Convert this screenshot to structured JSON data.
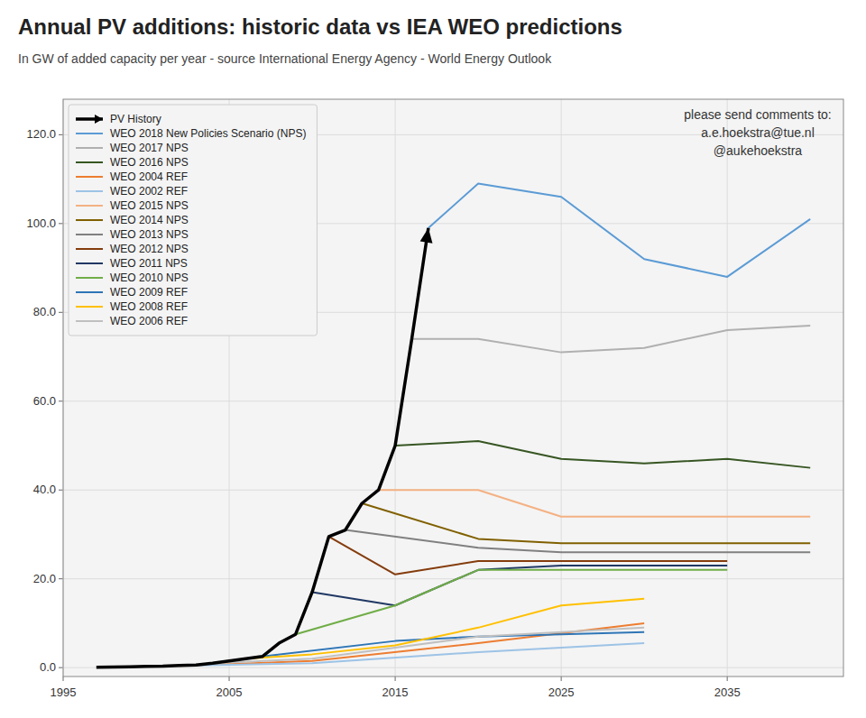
{
  "chart_data": {
    "type": "line",
    "title": "Annual PV additions: historic data vs IEA WEO predictions",
    "subtitle": "In GW of added capacity per year - source International Energy Agency - World Energy Outlook",
    "annotation": "please send comments to:\na.e.hoekstra@tue.nl\n@aukehoekstra",
    "xlim": [
      1995,
      2042
    ],
    "ylim": [
      -2,
      128
    ],
    "xticks": [
      1995,
      2005,
      2015,
      2025,
      2035
    ],
    "yticks": [
      {
        "value": 0.0,
        "label": "0.0"
      },
      {
        "value": 20.0,
        "label": "20.0"
      },
      {
        "value": 40.0,
        "label": "40.0"
      },
      {
        "value": 60.0,
        "label": "60.0"
      },
      {
        "value": 80.0,
        "label": "80.0"
      },
      {
        "value": 100.0,
        "label": "100.0"
      },
      {
        "value": 120.0,
        "label": "120.0"
      }
    ],
    "grid": true,
    "legend": "upper left",
    "series": [
      {
        "name": "PV History",
        "color": "#000000",
        "marker": "arrow",
        "x": [
          1997,
          1998,
          1999,
          2000,
          2001,
          2002,
          2003,
          2004,
          2005,
          2006,
          2007,
          2008,
          2009,
          2010,
          2011,
          2012,
          2013,
          2014,
          2015,
          2016,
          2017
        ],
        "values": [
          0.1,
          0.15,
          0.2,
          0.3,
          0.35,
          0.5,
          0.6,
          1.0,
          1.5,
          2.0,
          2.5,
          5.5,
          7.5,
          17.0,
          29.5,
          31.0,
          37.0,
          40.0,
          50.0,
          74.0,
          99.0
        ]
      },
      {
        "name": "WEO 2018 New Policies Scenario (NPS)",
        "color": "#5b9bd5",
        "x": [
          2017,
          2020,
          2025,
          2030,
          2035,
          2040
        ],
        "values": [
          99.0,
          109.0,
          106.0,
          92.0,
          88.0,
          101.0
        ]
      },
      {
        "name": "WEO 2017 NPS",
        "color": "#b0b0b0",
        "x": [
          2016,
          2020,
          2025,
          2030,
          2035,
          2040
        ],
        "values": [
          74.0,
          74.0,
          71.0,
          72.0,
          76.0,
          77.0
        ]
      },
      {
        "name": "WEO 2016 NPS",
        "color": "#375623",
        "x": [
          2015,
          2020,
          2025,
          2030,
          2035,
          2040
        ],
        "values": [
          50.0,
          51.0,
          47.0,
          46.0,
          47.0,
          45.0
        ]
      },
      {
        "name": "WEO 2004 REF",
        "color": "#ed7d31",
        "x": [
          2002,
          2010,
          2020,
          2030
        ],
        "values": [
          0.4,
          1.5,
          5.5,
          10.0
        ]
      },
      {
        "name": "WEO 2002 REF",
        "color": "#9dc3e6",
        "x": [
          2000,
          2010,
          2020,
          2030
        ],
        "values": [
          0.3,
          1.0,
          3.5,
          5.5
        ]
      },
      {
        "name": "WEO 2015 NPS",
        "color": "#f4b183",
        "x": [
          2014,
          2020,
          2025,
          2030,
          2035,
          2040
        ],
        "values": [
          40.0,
          40.0,
          34.0,
          34.0,
          34.0,
          34.0
        ]
      },
      {
        "name": "WEO 2014 NPS",
        "color": "#806000",
        "x": [
          2013,
          2020,
          2025,
          2030,
          2035,
          2040
        ],
        "values": [
          37.0,
          29.0,
          28.0,
          28.0,
          28.0,
          28.0
        ]
      },
      {
        "name": "WEO 2013 NPS",
        "color": "#808080",
        "x": [
          2012,
          2020,
          2025,
          2030,
          2035,
          2040
        ],
        "values": [
          31.0,
          27.0,
          26.0,
          26.0,
          26.0,
          26.0
        ]
      },
      {
        "name": "WEO 2012 NPS",
        "color": "#843c0c",
        "x": [
          2011,
          2015,
          2020,
          2025,
          2030,
          2035
        ],
        "values": [
          29.5,
          21.0,
          24.0,
          24.0,
          24.0,
          24.0
        ]
      },
      {
        "name": "WEO 2011 NPS",
        "color": "#203864",
        "x": [
          2010,
          2015,
          2020,
          2025,
          2030,
          2035
        ],
        "values": [
          17.0,
          14.0,
          22.0,
          23.0,
          23.0,
          23.0
        ]
      },
      {
        "name": "WEO 2010 NPS",
        "color": "#70ad47",
        "x": [
          2009,
          2015,
          2020,
          2025,
          2030,
          2035
        ],
        "values": [
          7.5,
          14.0,
          22.0,
          22.0,
          22.0,
          22.0
        ]
      },
      {
        "name": "WEO 2009 REF",
        "color": "#2e75b6",
        "x": [
          2007,
          2015,
          2020,
          2025,
          2030
        ],
        "values": [
          2.5,
          6.0,
          7.0,
          7.5,
          8.0
        ]
      },
      {
        "name": "WEO 2008 REF",
        "color": "#ffc000",
        "x": [
          2006,
          2010,
          2015,
          2020,
          2025,
          2030
        ],
        "values": [
          2.0,
          3.0,
          5.0,
          9.0,
          14.0,
          15.5
        ]
      },
      {
        "name": "WEO 2006 REF",
        "color": "#c0c0c0",
        "x": [
          2004,
          2010,
          2015,
          2020,
          2025,
          2030
        ],
        "values": [
          1.0,
          2.0,
          4.5,
          7.0,
          8.0,
          9.0
        ]
      }
    ]
  }
}
